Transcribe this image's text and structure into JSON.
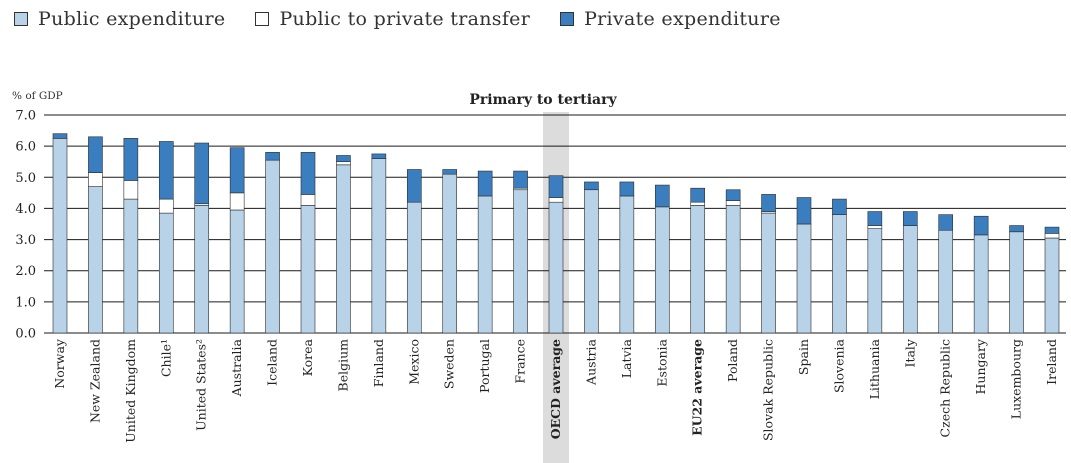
{
  "legend": {
    "items": [
      {
        "label": "Public expenditure",
        "color": "#b8d3e8"
      },
      {
        "label": "Public to private transfer",
        "color": "#ffffff"
      },
      {
        "label": "Private expenditure",
        "color": "#3b7ec0"
      }
    ]
  },
  "chart_data": {
    "type": "bar",
    "stacked": true,
    "title": "Primary to tertiary",
    "ylabel": "% of GDP",
    "ylim": [
      0,
      7
    ],
    "yticks": [
      "0.0",
      "1.0",
      "2.0",
      "3.0",
      "4.0",
      "5.0",
      "6.0",
      "7.0"
    ],
    "grid": true,
    "highlight_category": "OECD average",
    "bold_categories": [
      "OECD average",
      "EU22 average"
    ],
    "categories": [
      "Norway",
      "New Zealand",
      "United Kingdom",
      "Chile¹",
      "United States²",
      "Australia",
      "Iceland",
      "Korea",
      "Belgium",
      "Finland",
      "Mexico",
      "Sweden",
      "Portugal",
      "France",
      "OECD average",
      "Austria",
      "Latvia",
      "Estonia",
      "EU22 average",
      "Poland",
      "Slovak Republic",
      "Spain",
      "Slovenia",
      "Lithuania",
      "Italy",
      "Czech Republic",
      "Hungary",
      "Luxembourg",
      "Ireland"
    ],
    "series": [
      {
        "name": "Public expenditure",
        "color": "#b8d3e8",
        "values": [
          6.25,
          4.7,
          4.3,
          3.85,
          4.1,
          3.95,
          5.55,
          4.1,
          5.4,
          5.6,
          4.2,
          5.1,
          4.4,
          4.6,
          4.2,
          4.6,
          4.4,
          4.05,
          4.1,
          4.1,
          3.85,
          3.5,
          3.8,
          3.35,
          3.45,
          3.3,
          3.15,
          3.25,
          3.05
        ]
      },
      {
        "name": "Public to private transfer",
        "color": "#ffffff",
        "values": [
          0.0,
          0.45,
          0.6,
          0.45,
          0.05,
          0.55,
          0.0,
          0.35,
          0.1,
          0.0,
          0.0,
          0.0,
          0.0,
          0.05,
          0.15,
          0.0,
          0.0,
          0.0,
          0.1,
          0.15,
          0.05,
          0.0,
          0.0,
          0.1,
          0.0,
          0.0,
          0.0,
          0.0,
          0.15
        ]
      },
      {
        "name": "Private expenditure",
        "color": "#3b7ec0",
        "values": [
          0.15,
          1.15,
          1.35,
          1.85,
          1.95,
          1.45,
          0.25,
          1.35,
          0.2,
          0.15,
          1.05,
          0.15,
          0.8,
          0.55,
          0.7,
          0.25,
          0.45,
          0.7,
          0.45,
          0.35,
          0.55,
          0.85,
          0.5,
          0.45,
          0.45,
          0.5,
          0.6,
          0.2,
          0.2
        ]
      }
    ]
  }
}
